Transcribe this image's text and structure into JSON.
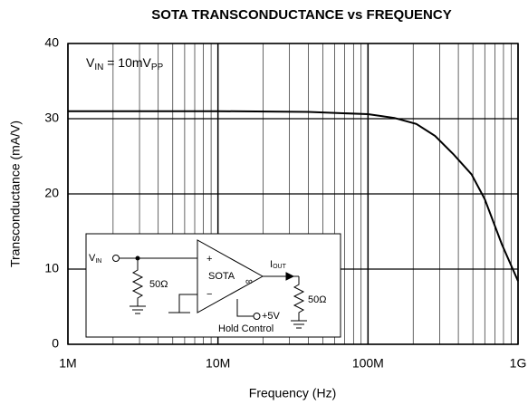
{
  "chart_data": {
    "type": "line",
    "title": "SOTA TRANSCONDUCTANCE vs FREQUENCY",
    "x_label": "Frequency (Hz)",
    "y_label": "Transconductance (mA/V)",
    "x_scale": "log",
    "grid": true,
    "xlim": [
      1000000,
      1000000000
    ],
    "ylim": [
      0,
      40
    ],
    "xticks": [
      {
        "value": 1000000,
        "label": "1M"
      },
      {
        "value": 10000000,
        "label": "10M"
      },
      {
        "value": 100000000,
        "label": "100M"
      },
      {
        "value": 1000000000,
        "label": "1G"
      }
    ],
    "x_minor_ticks": [
      2000000,
      3000000,
      4000000,
      5000000,
      6000000,
      7000000,
      8000000,
      9000000,
      20000000,
      30000000,
      40000000,
      50000000,
      60000000,
      70000000,
      80000000,
      90000000,
      200000000,
      300000000,
      400000000,
      500000000,
      600000000,
      700000000,
      800000000,
      900000000
    ],
    "yticks": [
      0,
      10,
      20,
      30,
      40
    ],
    "series": [
      {
        "color": "#000000",
        "x": [
          1000000,
          10000000,
          40000000,
          100000000,
          150000000,
          210000000,
          280000000,
          370000000,
          490000000,
          600000000,
          780000000,
          1000000000
        ],
        "values": [
          31,
          31,
          30.9,
          30.6,
          30.1,
          29.3,
          27.7,
          25.3,
          22.6,
          19.3,
          13.3,
          8.4
        ]
      }
    ],
    "annotation": [
      "V",
      "IN",
      " = 10mV",
      "PP"
    ],
    "inset": {
      "vin": [
        "V",
        "IN"
      ],
      "r1": "50Ω",
      "plus": "+",
      "minus": "−",
      "amp": "SOTA",
      "inf": "∞",
      "iout": [
        "I",
        "OUT"
      ],
      "r2": "50Ω",
      "v5": "+5V",
      "hold": "Hold Control"
    }
  }
}
